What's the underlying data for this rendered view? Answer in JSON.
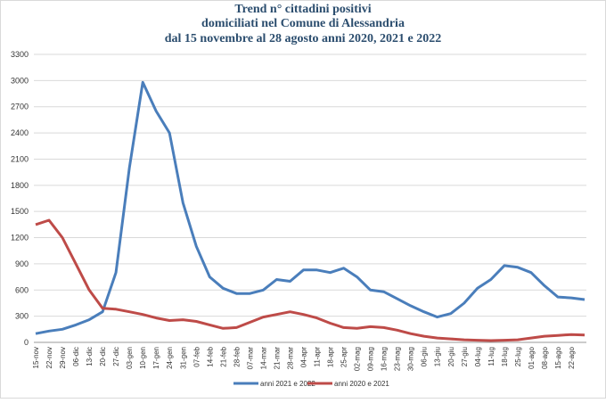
{
  "chart_data": {
    "type": "line",
    "title": [
      "Trend n° cittadini positivi",
      "domiciliati nel Comune di Alessandria",
      "dal 15 novembre al 28 agosto anni 2020, 2021 e 2022"
    ],
    "categories": [
      "15-nov",
      "22-nov",
      "29-nov",
      "06-dic",
      "13-dic",
      "20-dic",
      "27-dic",
      "03-gen",
      "10-gen",
      "17-gen",
      "24-gen",
      "31-gen",
      "07-feb",
      "14-feb",
      "21-feb",
      "28-feb",
      "07-mar",
      "14-mar",
      "21-mar",
      "28-mar",
      "04-apr",
      "11-apr",
      "18-apr",
      "25-apr",
      "02-mag",
      "09-mag",
      "16-mag",
      "23-mag",
      "30-mag",
      "06-giu",
      "13-giu",
      "20-giu",
      "27-giu",
      "04-lug",
      "11-lug",
      "18-lug",
      "25-lug",
      "01-ago",
      "08-ago",
      "15-ago",
      "22-ago",
      null
    ],
    "series": [
      {
        "name": "anni 2021 e 2022",
        "color": "#4a7ebb",
        "values": [
          100,
          130,
          150,
          200,
          260,
          350,
          800,
          2000,
          2980,
          2650,
          2400,
          1600,
          1100,
          750,
          620,
          560,
          560,
          600,
          720,
          700,
          830,
          830,
          800,
          850,
          750,
          600,
          580,
          500,
          420,
          350,
          290,
          330,
          450,
          620,
          720,
          880,
          860,
          800,
          650,
          520,
          510,
          490
        ]
      },
      {
        "name": "anni 2020 e 2021",
        "color": "#be4b48",
        "values": [
          1350,
          1400,
          1200,
          900,
          600,
          390,
          380,
          350,
          320,
          280,
          250,
          260,
          240,
          200,
          160,
          170,
          230,
          290,
          320,
          350,
          320,
          280,
          220,
          170,
          160,
          180,
          170,
          140,
          100,
          70,
          50,
          40,
          30,
          25,
          20,
          25,
          30,
          50,
          70,
          80,
          90,
          85
        ]
      }
    ],
    "ylim": [
      0,
      3300
    ],
    "yticks": [
      0,
      300,
      600,
      900,
      1200,
      1500,
      1800,
      2100,
      2400,
      2700,
      3000,
      3300
    ],
    "grid": true
  }
}
